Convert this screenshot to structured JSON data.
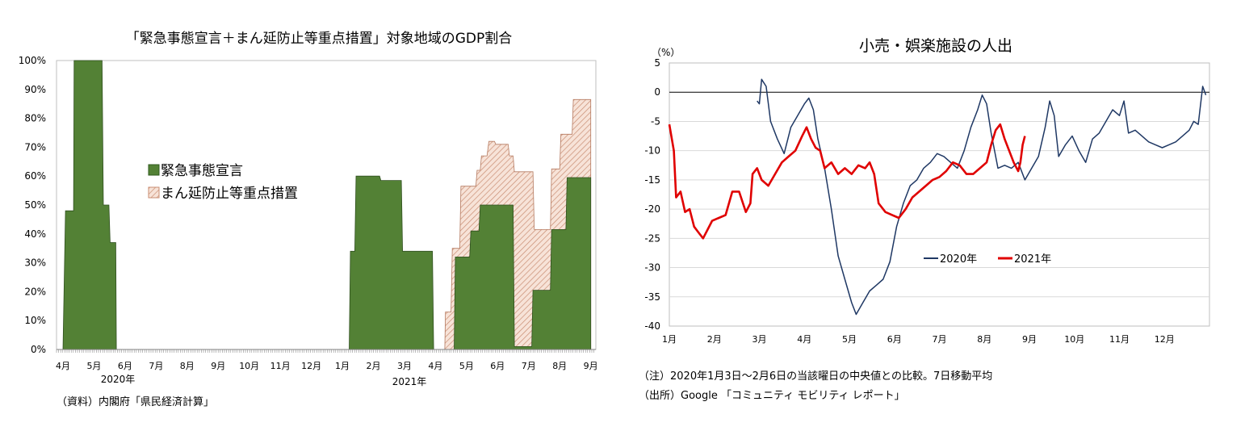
{
  "chart_data": [
    {
      "type": "area",
      "title": "「緊急事態宣言＋まん延防止等重点措置」対象地域のGDP割合",
      "ylim": [
        0,
        100
      ],
      "y_ticks": [
        "0%",
        "10%",
        "20%",
        "30%",
        "40%",
        "50%",
        "60%",
        "70%",
        "80%",
        "90%",
        "100%"
      ],
      "x_ticks": [
        "4月",
        "5月",
        "6月",
        "7月",
        "8月",
        "9月",
        "10月",
        "11月",
        "12月",
        "1月",
        "2月",
        "3月",
        "4月",
        "5月",
        "6月",
        "7月",
        "8月",
        "9月"
      ],
      "year_labels": [
        "2020年",
        "2021年"
      ],
      "legend": [
        "緊急事態宣言",
        "まん延防止等重点措置"
      ],
      "series": [
        {
          "name": "緊急事態宣言",
          "color": "#538135",
          "points": [
            [
              0.0,
              0
            ],
            [
              0.08,
              48
            ],
            [
              0.34,
              48
            ],
            [
              0.36,
              100
            ],
            [
              1.26,
              100
            ],
            [
              1.3,
              50
            ],
            [
              1.48,
              50
            ],
            [
              1.52,
              37
            ],
            [
              1.7,
              37
            ],
            [
              1.72,
              0
            ],
            [
              9.22,
              0
            ],
            [
              9.26,
              34
            ],
            [
              9.4,
              34
            ],
            [
              9.44,
              60
            ],
            [
              10.2,
              60
            ],
            [
              10.24,
              58.5
            ],
            [
              10.9,
              58.5
            ],
            [
              10.94,
              34
            ],
            [
              11.9,
              34
            ],
            [
              11.94,
              0
            ],
            [
              12.6,
              0
            ],
            [
              12.64,
              32
            ],
            [
              13.1,
              32
            ],
            [
              13.14,
              41
            ],
            [
              13.4,
              41
            ],
            [
              13.44,
              50
            ],
            [
              14.5,
              50
            ],
            [
              14.54,
              1
            ],
            [
              15.1,
              1
            ],
            [
              15.14,
              20.5
            ],
            [
              15.7,
              20.5
            ],
            [
              15.74,
              41.5
            ],
            [
              16.2,
              41.5
            ],
            [
              16.24,
              59.5
            ],
            [
              17.0,
              59.5
            ],
            [
              17.0,
              0
            ]
          ]
        },
        {
          "name": "まん延防止等重点措置",
          "color": "#e6b9a6",
          "points": [
            [
              12.3,
              0
            ],
            [
              12.32,
              13
            ],
            [
              12.5,
              13
            ],
            [
              12.54,
              35
            ],
            [
              12.78,
              35
            ],
            [
              12.82,
              56.5
            ],
            [
              13.3,
              56.5
            ],
            [
              13.34,
              62
            ],
            [
              13.44,
              62
            ],
            [
              13.48,
              67
            ],
            [
              13.66,
              67
            ],
            [
              13.72,
              72
            ],
            [
              13.9,
              72
            ],
            [
              13.94,
              71
            ],
            [
              14.34,
              71
            ],
            [
              14.38,
              67
            ],
            [
              14.5,
              67
            ],
            [
              14.54,
              61.5
            ],
            [
              15.14,
              61.5
            ],
            [
              15.18,
              41.5
            ],
            [
              15.7,
              41.5
            ],
            [
              15.74,
              62.5
            ],
            [
              16.0,
              62.5
            ],
            [
              16.04,
              74.5
            ],
            [
              16.4,
              74.5
            ],
            [
              16.44,
              86.5
            ],
            [
              17.0,
              86.5
            ],
            [
              17.0,
              0
            ]
          ]
        }
      ]
    },
    {
      "type": "line",
      "title": "小売・娯楽施設の人出",
      "ylabel": "（%）",
      "ylim": [
        -40,
        5
      ],
      "y_ticks": [
        "5",
        "0",
        "-5",
        "-10",
        "-15",
        "-20",
        "-25",
        "-30",
        "-35",
        "-40"
      ],
      "x_ticks": [
        "1月",
        "2月",
        "3月",
        "4月",
        "5月",
        "6月",
        "7月",
        "8月",
        "9月",
        "10月",
        "11月",
        "12月"
      ],
      "legend": [
        "2020年",
        "2021年"
      ],
      "series": [
        {
          "name": "2020年",
          "color": "#1f3864",
          "points": [
            [
              1.95,
              -1.5
            ],
            [
              2.0,
              -2
            ],
            [
              2.05,
              2.2
            ],
            [
              2.15,
              1
            ],
            [
              2.25,
              -5
            ],
            [
              2.4,
              -8
            ],
            [
              2.55,
              -10.5
            ],
            [
              2.7,
              -6
            ],
            [
              2.85,
              -4
            ],
            [
              3.0,
              -2
            ],
            [
              3.1,
              -1
            ],
            [
              3.2,
              -3
            ],
            [
              3.3,
              -8
            ],
            [
              3.45,
              -13
            ],
            [
              3.6,
              -20
            ],
            [
              3.75,
              -28
            ],
            [
              3.9,
              -32
            ],
            [
              4.05,
              -36
            ],
            [
              4.15,
              -38
            ],
            [
              4.3,
              -36
            ],
            [
              4.45,
              -34
            ],
            [
              4.6,
              -33
            ],
            [
              4.75,
              -32
            ],
            [
              4.9,
              -29
            ],
            [
              5.05,
              -23
            ],
            [
              5.2,
              -19
            ],
            [
              5.35,
              -16
            ],
            [
              5.5,
              -15
            ],
            [
              5.65,
              -13
            ],
            [
              5.8,
              -12
            ],
            [
              5.95,
              -10.5
            ],
            [
              6.1,
              -11
            ],
            [
              6.25,
              -12
            ],
            [
              6.4,
              -13
            ],
            [
              6.55,
              -10
            ],
            [
              6.7,
              -6
            ],
            [
              6.85,
              -3
            ],
            [
              6.95,
              -0.5
            ],
            [
              7.05,
              -2
            ],
            [
              7.15,
              -7
            ],
            [
              7.3,
              -13
            ],
            [
              7.45,
              -12.5
            ],
            [
              7.6,
              -13
            ],
            [
              7.75,
              -12
            ],
            [
              7.9,
              -15
            ],
            [
              8.05,
              -13
            ],
            [
              8.2,
              -11
            ],
            [
              8.35,
              -6
            ],
            [
              8.45,
              -1.5
            ],
            [
              8.55,
              -4
            ],
            [
              8.65,
              -11
            ],
            [
              8.8,
              -9
            ],
            [
              8.95,
              -7.5
            ],
            [
              9.1,
              -10
            ],
            [
              9.25,
              -12
            ],
            [
              9.4,
              -8
            ],
            [
              9.55,
              -7
            ],
            [
              9.7,
              -5
            ],
            [
              9.85,
              -3
            ],
            [
              10.0,
              -4
            ],
            [
              10.1,
              -1.5
            ],
            [
              10.2,
              -7
            ],
            [
              10.35,
              -6.5
            ],
            [
              10.5,
              -7.5
            ],
            [
              10.65,
              -8.5
            ],
            [
              10.8,
              -9
            ],
            [
              10.95,
              -9.5
            ],
            [
              11.1,
              -9
            ],
            [
              11.25,
              -8.5
            ],
            [
              11.4,
              -7.5
            ],
            [
              11.55,
              -6.5
            ],
            [
              11.65,
              -5
            ],
            [
              11.75,
              -5.5
            ],
            [
              11.85,
              1
            ],
            [
              11.92,
              -0.5
            ]
          ]
        },
        {
          "name": "2021年",
          "color": "#e00000",
          "points": [
            [
              0.0,
              -5.5
            ],
            [
              0.1,
              -10
            ],
            [
              0.15,
              -18
            ],
            [
              0.25,
              -17
            ],
            [
              0.35,
              -20.5
            ],
            [
              0.45,
              -20
            ],
            [
              0.55,
              -23
            ],
            [
              0.65,
              -24
            ],
            [
              0.75,
              -25
            ],
            [
              0.85,
              -23.5
            ],
            [
              0.95,
              -22
            ],
            [
              1.1,
              -21.5
            ],
            [
              1.25,
              -21
            ],
            [
              1.4,
              -17
            ],
            [
              1.55,
              -17
            ],
            [
              1.7,
              -20.5
            ],
            [
              1.8,
              -19
            ],
            [
              1.85,
              -14
            ],
            [
              1.95,
              -13
            ],
            [
              2.05,
              -15
            ],
            [
              2.2,
              -16
            ],
            [
              2.35,
              -14
            ],
            [
              2.5,
              -12
            ],
            [
              2.65,
              -11
            ],
            [
              2.8,
              -10
            ],
            [
              2.95,
              -7.5
            ],
            [
              3.05,
              -6
            ],
            [
              3.15,
              -8
            ],
            [
              3.25,
              -9.5
            ],
            [
              3.35,
              -10
            ],
            [
              3.45,
              -13
            ],
            [
              3.6,
              -12
            ],
            [
              3.75,
              -14
            ],
            [
              3.9,
              -13
            ],
            [
              4.05,
              -14
            ],
            [
              4.2,
              -12.5
            ],
            [
              4.35,
              -13
            ],
            [
              4.45,
              -12
            ],
            [
              4.55,
              -14
            ],
            [
              4.65,
              -19
            ],
            [
              4.8,
              -20.5
            ],
            [
              4.95,
              -21
            ],
            [
              5.1,
              -21.5
            ],
            [
              5.25,
              -20
            ],
            [
              5.4,
              -18
            ],
            [
              5.55,
              -17
            ],
            [
              5.7,
              -16
            ],
            [
              5.85,
              -15
            ],
            [
              6.0,
              -14.5
            ],
            [
              6.15,
              -13.5
            ],
            [
              6.3,
              -12
            ],
            [
              6.45,
              -12.5
            ],
            [
              6.6,
              -14
            ],
            [
              6.75,
              -14
            ],
            [
              6.9,
              -13
            ],
            [
              7.05,
              -12
            ],
            [
              7.15,
              -9
            ],
            [
              7.25,
              -6.5
            ],
            [
              7.35,
              -5.5
            ],
            [
              7.45,
              -8
            ],
            [
              7.55,
              -10
            ],
            [
              7.65,
              -12
            ],
            [
              7.75,
              -13.5
            ],
            [
              7.8,
              -12
            ],
            [
              7.85,
              -9
            ],
            [
              7.9,
              -7.5
            ]
          ]
        }
      ]
    }
  ],
  "notes": {
    "left_source": "（資料）内閣府「県民経済計算」",
    "right_note": "（注）2020年1月3日～2月6日の当該曜日の中央値との比較。7日移動平均",
    "right_source": "（出所）Google 「コミュニティ モビリティ レポート」"
  }
}
